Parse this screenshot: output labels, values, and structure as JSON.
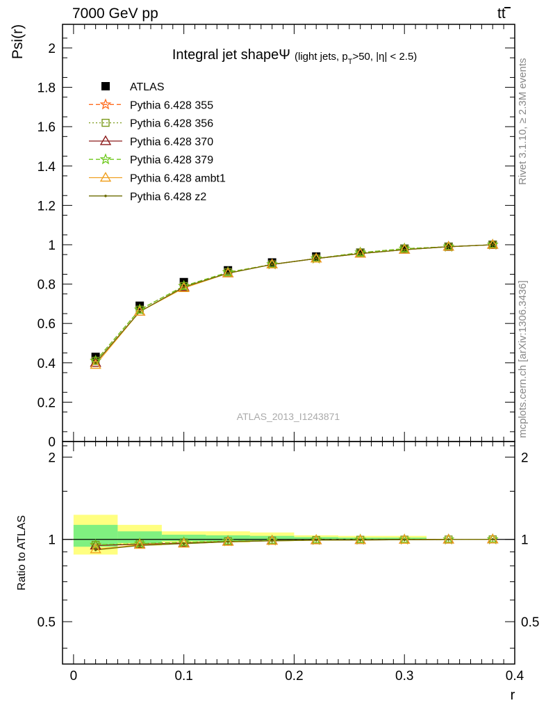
{
  "header": {
    "left_label": "7000 GeV pp",
    "right_label": "tt"
  },
  "side_labels": {
    "rivet": "Rivet 3.1.10, ≥ 2.3M events",
    "mcplots": "mcplots.cern.ch [arXiv:1306.3436]"
  },
  "chart_data": [
    {
      "type": "line",
      "panel": "main",
      "title": "Integral jet shapeΨ",
      "title_annotation": "(light jets, p_T>50, |η| < 2.5)",
      "ylabel": "Psi(r)",
      "watermark": "ATLAS_2013_I1243871",
      "xlim": [
        -0.01,
        0.4
      ],
      "ylim": [
        0,
        2.12
      ],
      "yticks": [
        0,
        0.2,
        0.4,
        0.6,
        0.8,
        1,
        1.2,
        1.4,
        1.6,
        1.8,
        2
      ],
      "ytick_labels": [
        "0",
        "0.2",
        "0.4",
        "0.6",
        "0.8",
        "1",
        "1.2",
        "1.4",
        "1.6",
        "1.8",
        "2"
      ],
      "legend_position": "top-left",
      "x": [
        0.02,
        0.06,
        0.1,
        0.14,
        0.18,
        0.22,
        0.26,
        0.3,
        0.34,
        0.38
      ],
      "series": [
        {
          "name": "ATLAS",
          "color": "#000000",
          "marker": "square",
          "style": "points",
          "values": [
            0.43,
            0.69,
            0.81,
            0.87,
            0.91,
            0.94,
            0.96,
            0.98,
            0.99,
            1.0
          ]
        },
        {
          "name": "Pythia 6.428 355",
          "color": "#ff6a1c",
          "marker": "star",
          "style": "dashed",
          "values": [
            0.41,
            0.67,
            0.79,
            0.86,
            0.9,
            0.93,
            0.96,
            0.98,
            0.99,
            1.0
          ]
        },
        {
          "name": "Pythia 6.428 356",
          "color": "#7a9a1a",
          "marker": "open-square",
          "style": "dotted",
          "values": [
            0.41,
            0.67,
            0.79,
            0.86,
            0.9,
            0.93,
            0.96,
            0.98,
            0.99,
            1.0
          ]
        },
        {
          "name": "Pythia 6.428 370",
          "color": "#8b1a1a",
          "marker": "open-triangle",
          "style": "solid",
          "values": [
            0.4,
            0.66,
            0.785,
            0.855,
            0.9,
            0.93,
            0.955,
            0.975,
            0.99,
            1.0
          ]
        },
        {
          "name": "Pythia 6.428 379",
          "color": "#6cc81a",
          "marker": "star",
          "style": "dashed",
          "values": [
            0.41,
            0.67,
            0.79,
            0.86,
            0.9,
            0.93,
            0.96,
            0.98,
            0.99,
            1.0
          ]
        },
        {
          "name": "Pythia 6.428 ambt1",
          "color": "#f0a020",
          "marker": "open-triangle",
          "style": "solid",
          "values": [
            0.39,
            0.66,
            0.78,
            0.855,
            0.9,
            0.93,
            0.955,
            0.975,
            0.99,
            1.0
          ]
        },
        {
          "name": "Pythia 6.428 z2",
          "color": "#6b6b00",
          "marker": "dot",
          "style": "solid",
          "values": [
            0.4,
            0.66,
            0.785,
            0.855,
            0.9,
            0.93,
            0.955,
            0.975,
            0.99,
            1.0
          ]
        }
      ]
    },
    {
      "type": "line",
      "panel": "ratio",
      "ylabel": "Ratio to ATLAS",
      "xlabel": "r",
      "xlim": [
        -0.01,
        0.4
      ],
      "ylim": [
        0.35,
        2.28
      ],
      "xticks": [
        0,
        0.1,
        0.2,
        0.3,
        0.4
      ],
      "xtick_labels": [
        "0",
        "0.1",
        "0.2",
        "0.3",
        "0.4"
      ],
      "yticks": [
        0.5,
        1,
        2
      ],
      "ytick_labels": [
        "0.5",
        "1",
        "2"
      ],
      "reference_line": 1,
      "uncertainty_bands": {
        "bin_edges": [
          0,
          0.04,
          0.08,
          0.12,
          0.16,
          0.2,
          0.24,
          0.28,
          0.32
        ],
        "outer": {
          "color": "#ffff80",
          "low": [
            0.88,
            0.95,
            0.975,
            0.975,
            0.985,
            0.99,
            0.995,
            0.995
          ],
          "high": [
            1.23,
            1.13,
            1.07,
            1.07,
            1.06,
            1.035,
            1.03,
            1.03
          ]
        },
        "inner": {
          "color": "#80f080",
          "low": [
            0.94,
            0.97,
            0.985,
            0.985,
            0.99,
            0.995,
            0.995,
            0.995
          ],
          "high": [
            1.13,
            1.07,
            1.04,
            1.035,
            1.03,
            1.02,
            1.015,
            1.015
          ]
        }
      },
      "x": [
        0.02,
        0.06,
        0.1,
        0.14,
        0.18,
        0.22,
        0.26,
        0.3,
        0.34,
        0.38
      ],
      "series": [
        {
          "name": "Pythia 6.428 355",
          "color": "#ff6a1c",
          "marker": "star",
          "style": "dashed",
          "values": [
            0.95,
            0.965,
            0.975,
            0.985,
            0.99,
            0.995,
            0.997,
            0.998,
            0.999,
            1.0
          ]
        },
        {
          "name": "Pythia 6.428 356",
          "color": "#7a9a1a",
          "marker": "open-square",
          "style": "dotted",
          "values": [
            0.955,
            0.965,
            0.975,
            0.985,
            0.99,
            0.995,
            0.997,
            0.998,
            0.999,
            1.0
          ]
        },
        {
          "name": "Pythia 6.428 370",
          "color": "#8b1a1a",
          "marker": "open-triangle",
          "style": "solid",
          "values": [
            0.95,
            0.96,
            0.97,
            0.983,
            0.99,
            0.993,
            0.995,
            0.997,
            0.999,
            1.0
          ]
        },
        {
          "name": "Pythia 6.428 379",
          "color": "#6cc81a",
          "marker": "star",
          "style": "dashed",
          "values": [
            0.955,
            0.965,
            0.975,
            0.985,
            0.99,
            0.995,
            0.997,
            0.998,
            0.999,
            1.0
          ]
        },
        {
          "name": "Pythia 6.428 ambt1",
          "color": "#f0a020",
          "marker": "open-triangle",
          "style": "solid",
          "values": [
            0.92,
            0.955,
            0.965,
            0.98,
            0.988,
            0.993,
            0.995,
            0.997,
            0.999,
            1.0
          ]
        },
        {
          "name": "Pythia 6.428 z2",
          "color": "#6b6b00",
          "marker": "dot",
          "style": "solid",
          "values": [
            0.915,
            0.95,
            0.965,
            0.98,
            0.988,
            0.993,
            0.995,
            0.997,
            0.999,
            1.0
          ]
        }
      ]
    }
  ]
}
